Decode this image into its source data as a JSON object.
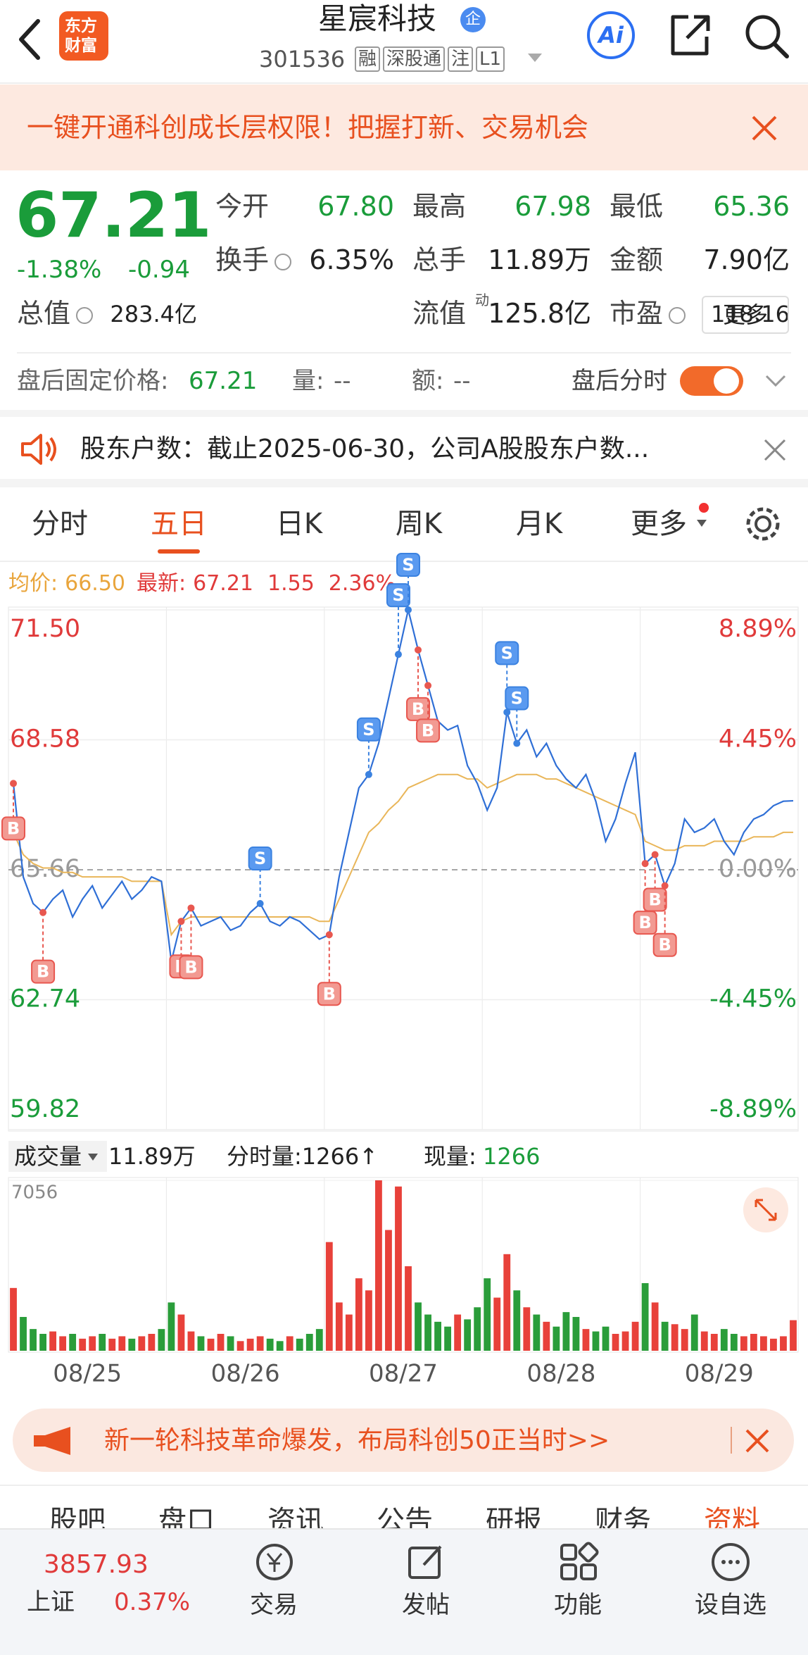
{
  "header": {
    "title": "星宸科技",
    "badge": "企",
    "code": "301536",
    "tags": [
      "融",
      "深股通",
      "注",
      "L1"
    ],
    "logo": [
      "东方",
      "财富"
    ],
    "ai": "Ai"
  },
  "banner": {
    "text": "一键开通科创成长层权限！把握打新、交易机会"
  },
  "quote": {
    "price": "67.21",
    "change_pct": "-1.38%",
    "change": "-0.94",
    "stats": [
      [
        "今开",
        "67.80"
      ],
      [
        "最高",
        "67.98"
      ],
      [
        "最低",
        "65.36"
      ],
      [
        "换手",
        "6.35%"
      ],
      [
        "总手",
        "11.89万"
      ],
      [
        "金额",
        "7.90亿"
      ],
      [
        "总值",
        "283.4亿"
      ],
      [
        "流值",
        "125.8亿"
      ],
      [
        "市盈",
        "118.16"
      ]
    ],
    "pe_sup": "动",
    "more": "更多"
  },
  "after_hours": {
    "price_label": "盘后固定价格:",
    "price": "67.21",
    "vol_label": "量:",
    "vol": "--",
    "amt_label": "额:",
    "amt": "--",
    "toggle_label": "盘后分时"
  },
  "notice": {
    "text": "股东户数：截止2025-06-30，公司A股股东户数..."
  },
  "tabs": {
    "items": [
      "分时",
      "五日",
      "日K",
      "周K",
      "月K",
      "更多"
    ],
    "active": 1
  },
  "info": {
    "avg_label": "均价:",
    "avg": "66.50",
    "last_label": "最新:",
    "last": "67.21",
    "change": "1.55",
    "change_pct": "2.36%"
  },
  "volume_info": {
    "label": "成交量",
    "total": "11.89万",
    "period": "分时量:1266↑",
    "now_label": "现量:",
    "now": "1266"
  },
  "dates": [
    "08/25",
    "08/26",
    "08/27",
    "08/28",
    "08/29"
  ],
  "ad": {
    "text": "新一轮科技革命爆发，布局科创50正当时>>"
  },
  "sub_tabs": [
    "股吧",
    "盘口",
    "资讯",
    "公告",
    "研报",
    "财务",
    "资料"
  ],
  "bottom": {
    "index_value": "3857.93",
    "index_name": "上证",
    "index_pct": "0.37%",
    "items": [
      "交易",
      "发帖",
      "功能",
      "设自选"
    ]
  },
  "chart_data": [
    {
      "type": "line",
      "ylim": [
        59.82,
        71.5
      ],
      "yticks": [
        {
          "value": 71.5,
          "label": "71.50"
        },
        68.58,
        {
          "value": 65.66,
          "label": "65.66"
        },
        62.74,
        59.82
      ],
      "y2lim": [
        -8.89,
        8.89
      ],
      "y2ticks": [
        {
          "value": 8.89,
          "label": "8.89%"
        },
        {
          "value": 4.45,
          "label": "4.45%"
        },
        {
          "value": 0,
          "label": "0.00%"
        },
        {
          "value": -4.45,
          "label": "-4.45%"
        },
        {
          "value": -8.89,
          "label": "-8.89%"
        }
      ],
      "series": [
        {
          "color": "#2f6fd6",
          "values": [
            67.6,
            65.5,
            64.9,
            64.7,
            65.0,
            65.2,
            64.6,
            65.0,
            65.3,
            64.8,
            65.1,
            65.4,
            65.0,
            65.2,
            65.5,
            65.4,
            63.6,
            64.5,
            64.8,
            64.4,
            64.5,
            64.6,
            64.3,
            64.4,
            64.7,
            64.9,
            64.5,
            64.4,
            64.6,
            64.5,
            64.3,
            64.1,
            64.2,
            65.5,
            66.5,
            67.5,
            67.8,
            68.5,
            69.5,
            70.5,
            71.5,
            70.6,
            69.8,
            69.0,
            68.8,
            68.9,
            68.0,
            67.6,
            67.0,
            67.5,
            69.2,
            68.5,
            68.8,
            68.2,
            68.5,
            68.0,
            67.7,
            67.5,
            67.8,
            67.2,
            66.3,
            66.8,
            67.6,
            68.3,
            65.8,
            66.0,
            65.3,
            65.8,
            66.8,
            66.5,
            66.6,
            66.8,
            66.3,
            66.0,
            66.5,
            66.8,
            66.9,
            67.1,
            67.2,
            67.21
          ]
        },
        {
          "color": "#e9b659",
          "values": [
            66.5,
            66.0,
            65.8,
            65.7,
            65.7,
            65.6,
            65.6,
            65.5,
            65.5,
            65.5,
            65.5,
            65.5,
            65.4,
            65.4,
            65.4,
            65.4,
            64.2,
            64.5,
            64.6,
            64.6,
            64.6,
            64.6,
            64.6,
            64.6,
            64.6,
            64.6,
            64.6,
            64.6,
            64.6,
            64.6,
            64.6,
            64.5,
            64.5,
            65.0,
            65.5,
            66.0,
            66.5,
            66.7,
            67.0,
            67.2,
            67.5,
            67.6,
            67.7,
            67.8,
            67.8,
            67.8,
            67.7,
            67.7,
            67.5,
            67.6,
            67.7,
            67.8,
            67.8,
            67.8,
            67.7,
            67.7,
            67.6,
            67.5,
            67.4,
            67.3,
            67.2,
            67.1,
            67.0,
            66.9,
            66.3,
            66.2,
            66.1,
            66.1,
            66.2,
            66.2,
            66.2,
            66.3,
            66.3,
            66.3,
            66.3,
            66.4,
            66.4,
            66.4,
            66.5,
            66.5
          ]
        }
      ],
      "markers": [
        {
          "label": "B",
          "i": 0
        },
        {
          "label": "B",
          "i": 3
        },
        {
          "label": "B",
          "i": 17
        },
        {
          "label": "B",
          "i": 18
        },
        {
          "label": "S",
          "i": 25
        },
        {
          "label": "B",
          "i": 32
        },
        {
          "label": "S",
          "i": 36
        },
        {
          "label": "S",
          "i": 39
        },
        {
          "label": "S",
          "i": 40
        },
        {
          "label": "B",
          "i": 41
        },
        {
          "label": "B",
          "i": 42
        },
        {
          "label": "S",
          "i": 50
        },
        {
          "label": "S",
          "i": 51
        },
        {
          "label": "B",
          "i": 64
        },
        {
          "label": "B",
          "i": 65
        },
        {
          "label": "B",
          "i": 66
        }
      ]
    },
    {
      "type": "bar",
      "ylim": [
        0,
        7056
      ],
      "yticks": [
        7056
      ],
      "colors": [
        "#e8413a",
        "#2a9d3a"
      ],
      "values": [
        2600,
        1400,
        900,
        700,
        800,
        600,
        700,
        500,
        600,
        700,
        500,
        600,
        500,
        600,
        700,
        900,
        2000,
        1500,
        800,
        600,
        500,
        700,
        600,
        400,
        500,
        600,
        500,
        400,
        600,
        500,
        700,
        900,
        4500,
        2000,
        1500,
        3000,
        2500,
        7056,
        5000,
        6800,
        3500,
        2000,
        1500,
        1200,
        1000,
        1500,
        1300,
        1800,
        3000,
        2200,
        4000,
        2500,
        1800,
        1500,
        1200,
        1000,
        1600,
        1400,
        900,
        800,
        1000,
        700,
        800,
        1200,
        2800,
        2000,
        1200,
        1100,
        900,
        1500,
        800,
        700,
        900,
        700,
        600,
        700,
        600,
        500,
        600,
        1266
      ]
    }
  ]
}
